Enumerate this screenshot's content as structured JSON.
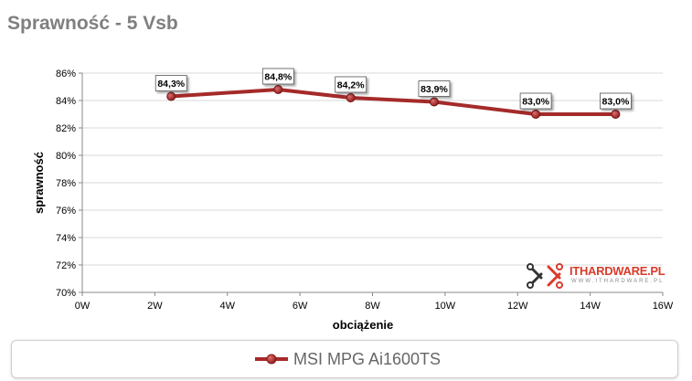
{
  "title": "Sprawność - 5 Vsb",
  "logo": {
    "text": "ITHARDWARE.PL",
    "subtext": "WWW.ITHARDWARE.PL",
    "colors": {
      "primary": "#d93b2a",
      "dark": "#333333"
    }
  },
  "legend": {
    "label": "MSI MPG Ai1600TS"
  },
  "chart_data": {
    "type": "line",
    "title": "Sprawność - 5 Vsb",
    "xlabel": "obciążenie",
    "ylabel": "sprawność",
    "x_ticks": [
      "0W",
      "2W",
      "4W",
      "6W",
      "8W",
      "10W",
      "12W",
      "14W",
      "16W"
    ],
    "y_ticks": [
      "70%",
      "72%",
      "74%",
      "76%",
      "78%",
      "80%",
      "82%",
      "84%",
      "86%"
    ],
    "xlim": [
      0,
      16
    ],
    "ylim": [
      70,
      86
    ],
    "grid": "horizontal",
    "series": [
      {
        "name": "MSI MPG Ai1600TS",
        "color": "#a52a2a",
        "x": [
          2.45,
          5.4,
          7.4,
          9.7,
          12.5,
          14.7
        ],
        "y": [
          84.3,
          84.8,
          84.2,
          83.9,
          83.0,
          83.0
        ],
        "labels": [
          "84,3%",
          "84,8%",
          "84,2%",
          "83,9%",
          "83,0%",
          "83,0%"
        ]
      }
    ]
  }
}
